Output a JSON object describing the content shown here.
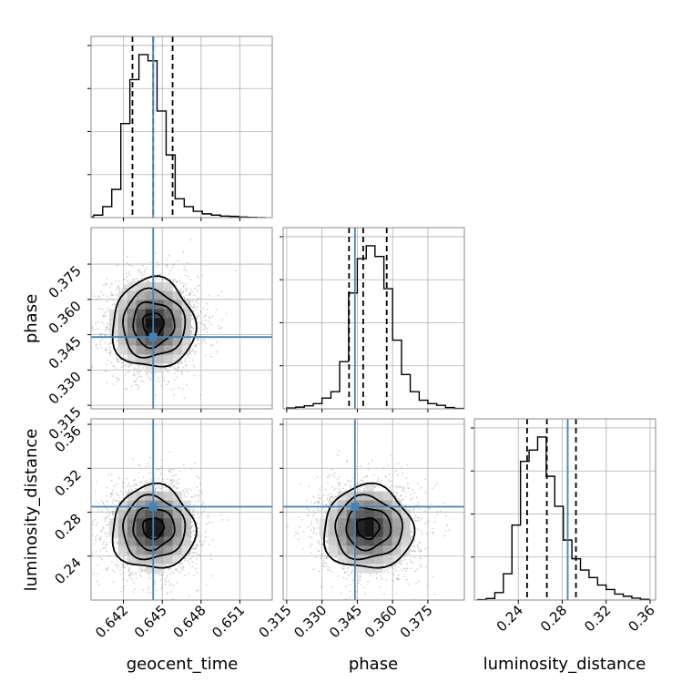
{
  "chart_data": {
    "type": "corner",
    "grid": true,
    "parameters": [
      {
        "name": "geocent_time",
        "label": "geocent_time",
        "range": [
          0.6395,
          0.6535
        ],
        "ticks": [
          0.642,
          0.645,
          0.648,
          0.651
        ],
        "tick_labels": [
          "0.642",
          "0.645",
          "0.648",
          "0.651"
        ],
        "truth": 0.6443,
        "quantiles": [
          0.6427,
          0.6443,
          0.6458
        ]
      },
      {
        "name": "phase",
        "label": "phase",
        "range": [
          0.3135,
          0.3905
        ],
        "ticks": [
          0.315,
          0.33,
          0.345,
          0.36,
          0.375
        ],
        "tick_labels": [
          "0.315",
          "0.330",
          "0.345",
          "0.360",
          "0.375"
        ],
        "truth": 0.344,
        "quantiles": [
          0.3415,
          0.3475,
          0.3575
        ]
      },
      {
        "name": "luminosity_distance",
        "label": "luminosity_distance",
        "range": [
          0.2,
          0.365
        ],
        "ticks": [
          0.24,
          0.28,
          0.32,
          0.36
        ],
        "tick_labels": [
          "0.24",
          "0.28",
          "0.32",
          "0.36"
        ],
        "truth": 0.285,
        "quantiles": [
          0.248,
          0.266,
          0.2925
        ]
      }
    ],
    "histograms": [
      {
        "param": "geocent_time",
        "bin_edges": [
          0.639,
          0.6397,
          0.6404,
          0.6411,
          0.6418,
          0.6425,
          0.6432,
          0.6439,
          0.6446,
          0.6453,
          0.646,
          0.6467,
          0.6474,
          0.6481,
          0.6488,
          0.6495,
          0.6502,
          0.6509,
          0.6516,
          0.6523,
          0.653
        ],
        "counts": [
          2,
          8,
          35,
          90,
          300,
          440,
          520,
          500,
          340,
          200,
          60,
          35,
          20,
          12,
          8,
          5,
          4,
          2,
          1,
          0
        ]
      },
      {
        "param": "phase",
        "bin_edges": [
          0.315,
          0.3188,
          0.3225,
          0.3263,
          0.33,
          0.3338,
          0.3375,
          0.3413,
          0.345,
          0.3488,
          0.3525,
          0.3563,
          0.36,
          0.3638,
          0.3675,
          0.3713,
          0.375,
          0.3788,
          0.3825,
          0.3863,
          0.39
        ],
        "counts": [
          2,
          4,
          7,
          12,
          25,
          40,
          110,
          270,
          350,
          380,
          355,
          280,
          160,
          80,
          40,
          20,
          12,
          8,
          3,
          1
        ]
      },
      {
        "param": "luminosity_distance",
        "bin_edges": [
          0.203,
          0.2108,
          0.2186,
          0.2264,
          0.2342,
          0.242,
          0.2498,
          0.2576,
          0.2654,
          0.2732,
          0.281,
          0.2888,
          0.2966,
          0.3044,
          0.3122,
          0.32,
          0.3278,
          0.3356,
          0.3434,
          0.3512,
          0.359
        ],
        "counts": [
          1,
          4,
          20,
          70,
          200,
          370,
          400,
          435,
          330,
          250,
          160,
          110,
          80,
          60,
          40,
          28,
          16,
          10,
          5,
          2
        ]
      }
    ],
    "joint_2d": [
      {
        "x": "geocent_time",
        "y": "phase",
        "center": [
          0.6443,
          0.3495
        ],
        "sigma": [
          0.0016,
          0.0095
        ],
        "rho": 0.0,
        "contour_levels_sigma": [
          0.5,
          1.0,
          1.5,
          2.0
        ],
        "scatter_points": 2500
      },
      {
        "x": "geocent_time",
        "y": "luminosity_distance",
        "center": [
          0.6443,
          0.2655
        ],
        "sigma": [
          0.0016,
          0.019
        ],
        "rho": 0.0,
        "contour_levels_sigma": [
          0.5,
          1.0,
          1.5,
          2.0
        ],
        "scatter_points": 2500
      },
      {
        "x": "phase",
        "y": "luminosity_distance",
        "center": [
          0.3495,
          0.2655
        ],
        "sigma": [
          0.0095,
          0.019
        ],
        "rho": 0.0,
        "contour_levels_sigma": [
          0.5,
          1.0,
          1.5,
          2.0
        ],
        "scatter_points": 2500
      }
    ],
    "colors": {
      "truth": "#4682b4",
      "histogram": "#000000",
      "quantile": "#000000",
      "scatter": "#9a9a9a",
      "contour": "#000000"
    }
  }
}
